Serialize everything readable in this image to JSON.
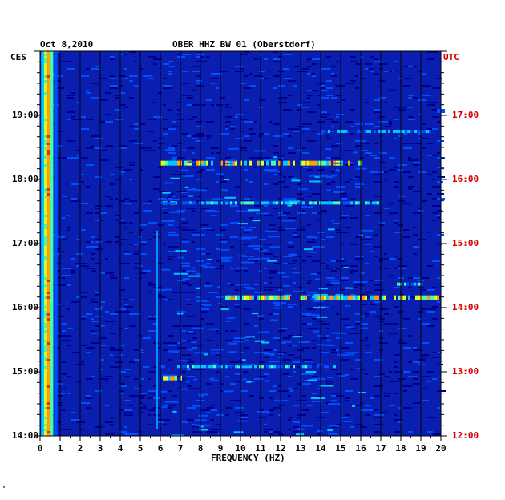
{
  "header": {
    "date": "Oct 8,2010",
    "station": "OBER HHZ BW 01 (Oberstdorf)"
  },
  "chart_data": {
    "type": "heatmap",
    "title": "OBER HHZ BW 01 (Oberstdorf)",
    "date": "Oct 8,2010",
    "xlabel": "FREQUENCY (HZ)",
    "xlim": [
      0,
      20
    ],
    "x_ticks": [
      "0",
      "1",
      "2",
      "3",
      "4",
      "5",
      "6",
      "7",
      "8",
      "9",
      "10",
      "11",
      "12",
      "13",
      "14",
      "15",
      "16",
      "17",
      "18",
      "19",
      "20"
    ],
    "left_axis": {
      "zone": "CES",
      "ticks": [
        "14:00",
        "15:00",
        "16:00",
        "17:00",
        "18:00",
        "19:00"
      ],
      "range": [
        "14:00",
        "20:00"
      ]
    },
    "right_axis": {
      "zone": "UTC",
      "ticks": [
        "12:00",
        "13:00",
        "14:00",
        "15:00",
        "16:00",
        "17:00"
      ],
      "range": [
        "12:00",
        "18:00"
      ]
    },
    "background_color": "#0a1fb0",
    "grid": true,
    "color_scale": [
      "#00008b",
      "#0a1fb0",
      "#0050ff",
      "#00c8ff",
      "#40ffb0",
      "#e0ff20",
      "#ffa000",
      "#ff2000"
    ],
    "notable_events": [
      {
        "time_ces": "16:10",
        "freq_range": [
          9,
          20
        ],
        "level": "high"
      },
      {
        "time_ces": "18:16",
        "freq_range": [
          6,
          16
        ],
        "level": "high"
      },
      {
        "time_ces": "17:38",
        "freq_range": [
          6,
          17
        ],
        "level": "medium"
      },
      {
        "time_ces": "16:22",
        "freq_range": [
          17.8,
          19.6
        ],
        "level": "medium"
      },
      {
        "time_ces": "18:45",
        "freq_range": [
          14,
          19.5
        ],
        "level": "low"
      },
      {
        "time_ces": "15:05",
        "freq_range": [
          6,
          15
        ],
        "level": "medium"
      },
      {
        "time_ces": "14:55",
        "freq_range": [
          6,
          7
        ],
        "level": "high"
      }
    ]
  },
  "footer": {
    "mark": "\""
  }
}
